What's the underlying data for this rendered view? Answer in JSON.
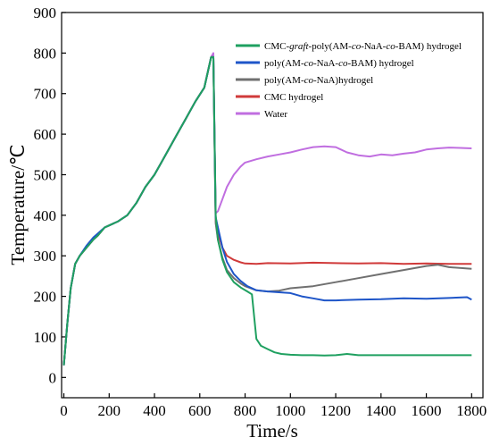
{
  "chart_data": {
    "type": "line",
    "title": "",
    "xlabel": "Time/s",
    "ylabel": "Temperature/℃",
    "xlim": [
      -10,
      1850
    ],
    "ylim": [
      -50,
      900
    ],
    "xticks": [
      0,
      200,
      400,
      600,
      800,
      1000,
      1200,
      1400,
      1600,
      1800
    ],
    "yticks": [
      0,
      100,
      200,
      300,
      400,
      500,
      600,
      700,
      800,
      900
    ],
    "grid": false,
    "legend_position": "top-right",
    "series": [
      {
        "name_parts": [
          {
            "t": "CMC-"
          },
          {
            "t": "graft",
            "i": true
          },
          {
            "t": "-poly(AM-"
          },
          {
            "t": "co",
            "i": true
          },
          {
            "t": "-NaA-"
          },
          {
            "t": "co",
            "i": true
          },
          {
            "t": "-BAM) hydrogel"
          }
        ],
        "color": "#1fa060",
        "x": [
          0,
          15,
          30,
          50,
          70,
          100,
          130,
          150,
          180,
          200,
          240,
          280,
          320,
          360,
          400,
          430,
          460,
          500,
          540,
          580,
          620,
          650,
          660,
          670,
          680,
          700,
          720,
          750,
          780,
          810,
          830,
          840,
          850,
          870,
          900,
          930,
          960,
          1000,
          1050,
          1100,
          1150,
          1200,
          1250,
          1300,
          1400,
          1500,
          1600,
          1700,
          1800
        ],
        "values": [
          30,
          130,
          220,
          280,
          300,
          320,
          340,
          350,
          370,
          375,
          385,
          400,
          430,
          470,
          500,
          530,
          560,
          600,
          640,
          680,
          715,
          790,
          790,
          400,
          340,
          290,
          260,
          235,
          222,
          212,
          205,
          150,
          95,
          78,
          70,
          62,
          58,
          56,
          55,
          55,
          54,
          55,
          58,
          55,
          55,
          55,
          55,
          55,
          55
        ]
      },
      {
        "name_parts": [
          {
            "t": "poly(AM-"
          },
          {
            "t": "co",
            "i": true
          },
          {
            "t": "-NaA-"
          },
          {
            "t": "co",
            "i": true
          },
          {
            "t": "-BAM) hydrogel"
          }
        ],
        "color": "#1e55c8",
        "x": [
          0,
          15,
          30,
          50,
          70,
          100,
          130,
          150,
          180,
          200,
          240,
          280,
          320,
          360,
          400,
          430,
          460,
          500,
          540,
          580,
          620,
          650,
          660,
          670,
          680,
          700,
          720,
          750,
          780,
          810,
          850,
          900,
          950,
          1000,
          1050,
          1100,
          1150,
          1200,
          1300,
          1400,
          1500,
          1600,
          1700,
          1780,
          1800
        ],
        "values": [
          30,
          130,
          220,
          280,
          300,
          325,
          345,
          355,
          370,
          375,
          385,
          400,
          430,
          470,
          500,
          530,
          560,
          600,
          640,
          680,
          715,
          790,
          790,
          395,
          370,
          320,
          285,
          255,
          238,
          225,
          215,
          212,
          210,
          208,
          200,
          195,
          190,
          190,
          192,
          193,
          195,
          194,
          196,
          198,
          192
        ]
      },
      {
        "name_parts": [
          {
            "t": "poly(AM-"
          },
          {
            "t": "co",
            "i": true
          },
          {
            "t": "-NaA)hydrogel"
          }
        ],
        "color": "#707070",
        "x": [
          0,
          15,
          30,
          50,
          70,
          100,
          130,
          150,
          180,
          200,
          240,
          280,
          320,
          360,
          400,
          430,
          460,
          500,
          540,
          580,
          620,
          650,
          660,
          670,
          680,
          700,
          720,
          750,
          780,
          800,
          850,
          900,
          950,
          1000,
          1100,
          1200,
          1300,
          1400,
          1500,
          1600,
          1650,
          1700,
          1800
        ],
        "values": [
          30,
          130,
          220,
          280,
          300,
          320,
          340,
          350,
          370,
          375,
          385,
          400,
          430,
          470,
          500,
          530,
          560,
          600,
          640,
          680,
          715,
          790,
          790,
          380,
          340,
          295,
          265,
          245,
          232,
          225,
          215,
          212,
          214,
          220,
          225,
          235,
          245,
          255,
          265,
          275,
          278,
          272,
          268
        ]
      },
      {
        "name_parts": [
          {
            "t": "CMC hydrogel"
          }
        ],
        "color": "#d03a3a",
        "x": [
          0,
          15,
          30,
          50,
          70,
          100,
          130,
          150,
          180,
          200,
          240,
          280,
          320,
          360,
          400,
          430,
          460,
          500,
          540,
          580,
          620,
          650,
          660,
          670,
          680,
          700,
          720,
          750,
          780,
          800,
          850,
          900,
          1000,
          1100,
          1200,
          1300,
          1400,
          1500,
          1600,
          1700,
          1800
        ],
        "values": [
          30,
          130,
          220,
          280,
          300,
          320,
          340,
          350,
          370,
          375,
          385,
          400,
          430,
          470,
          500,
          530,
          560,
          600,
          640,
          680,
          715,
          790,
          790,
          385,
          355,
          320,
          300,
          290,
          284,
          281,
          280,
          282,
          281,
          283,
          282,
          281,
          282,
          280,
          281,
          280,
          280
        ]
      },
      {
        "name_parts": [
          {
            "t": "Water"
          }
        ],
        "color": "#c06ee0",
        "x": [
          0,
          15,
          30,
          50,
          70,
          100,
          130,
          150,
          180,
          200,
          240,
          280,
          320,
          360,
          400,
          430,
          460,
          500,
          540,
          580,
          620,
          650,
          660,
          670,
          680,
          700,
          720,
          750,
          780,
          800,
          850,
          900,
          950,
          1000,
          1050,
          1100,
          1150,
          1200,
          1250,
          1300,
          1350,
          1400,
          1450,
          1500,
          1550,
          1600,
          1650,
          1700,
          1750,
          1800
        ],
        "values": [
          30,
          130,
          220,
          280,
          300,
          320,
          340,
          350,
          370,
          375,
          385,
          400,
          430,
          470,
          500,
          530,
          560,
          600,
          640,
          680,
          715,
          790,
          800,
          405,
          410,
          440,
          470,
          500,
          520,
          530,
          538,
          545,
          550,
          555,
          562,
          568,
          570,
          568,
          555,
          548,
          545,
          550,
          548,
          552,
          555,
          562,
          565,
          567,
          566,
          565
        ]
      }
    ]
  }
}
